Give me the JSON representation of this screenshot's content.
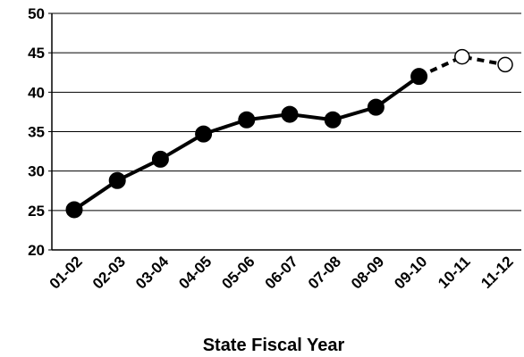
{
  "chart_data": {
    "type": "line",
    "title": "",
    "xlabel": "State Fiscal Year",
    "ylabel": "",
    "ylim": [
      20,
      50
    ],
    "y_ticks": [
      20,
      25,
      30,
      35,
      40,
      45,
      50
    ],
    "grid": "horizontal",
    "categories": [
      "01-02",
      "02-03",
      "03-04",
      "04-05",
      "05-06",
      "06-07",
      "07-08",
      "08-09",
      "09-10",
      "10-11",
      "11-12"
    ],
    "series": [
      {
        "style": "solid line, filled markers",
        "values": [
          25.1,
          28.8,
          31.5,
          34.7,
          36.5,
          37.2,
          36.5,
          38.1,
          42.0,
          null,
          null
        ]
      },
      {
        "style": "dashed line, open markers",
        "values": [
          null,
          null,
          null,
          null,
          null,
          null,
          null,
          null,
          42.0,
          44.5,
          43.5
        ]
      }
    ],
    "colors": {
      "line": "#000000",
      "grid": "#000000",
      "open_marker_fill": "#ffffff"
    }
  }
}
